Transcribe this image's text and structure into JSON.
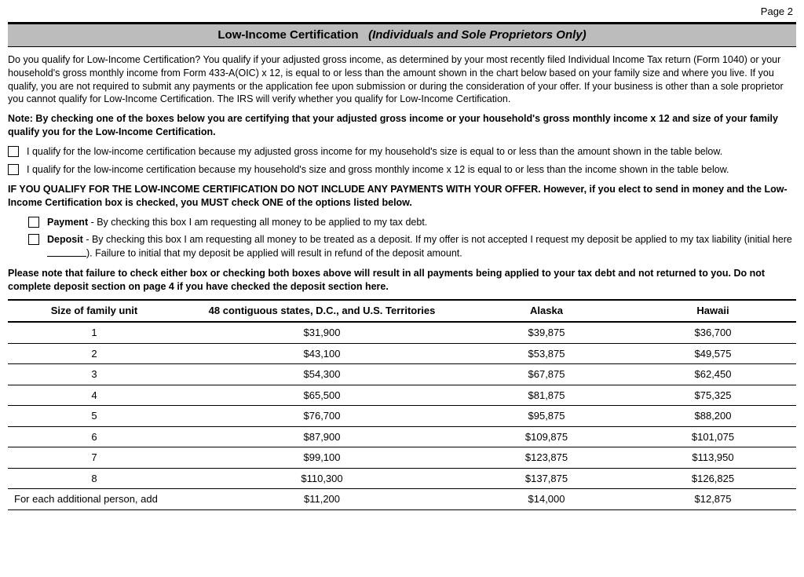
{
  "page": {
    "number_label": "Page 2"
  },
  "header": {
    "title": "Low-Income Certification",
    "subtitle": "(Individuals and Sole Proprietors Only)"
  },
  "intro_para": "Do you qualify for Low-Income Certification? You qualify if your adjusted gross income, as determined by your most recently filed Individual Income Tax return (Form 1040) or your household's gross monthly income from Form 433-A(OIC) x 12, is equal to or less than the amount shown in the chart below based on your family size and where you live. If you qualify, you are not required to submit any payments or the application fee upon submission or during the consideration of your  offer. If your business is other than a sole proprietor you cannot qualify for Low-Income Certification. The IRS will verify whether you qualify for Low-Income Certification.",
  "note_para": "Note: By checking one of the boxes below you are certifying that your adjusted gross income or your household's gross monthly income x 12 and size of your family qualify you for the Low-Income Certification.",
  "qualify_checkboxes": [
    {
      "text": "I qualify for the low-income certification because my adjusted gross income for my household's size is equal to or less than the amount shown in the table below."
    },
    {
      "text": "I qualify for the low-income certification because my household's size and gross monthly income x 12 is equal to or less than the income shown in the table below."
    }
  ],
  "if_qualify_para": "IF YOU QUALIFY FOR THE LOW-INCOME CERTIFICATION DO NOT INCLUDE ANY PAYMENTS WITH YOUR OFFER. However, if you elect to send in money and the Low-Income Certification box is checked, you MUST check ONE of the options listed below.",
  "payment_checkbox": {
    "label": "Payment",
    "text": " - By checking this box I am requesting all money to be applied to my tax debt."
  },
  "deposit_checkbox": {
    "label": "Deposit",
    "text_before": " - By checking this box I am requesting all money to be treated as a deposit. If my offer is not accepted I request my deposit be applied to my tax liability (initial here ",
    "text_after": "). Failure to initial that my deposit be applied will result in refund of the deposit amount."
  },
  "please_note_para": "Please note that failure to check either box or checking both boxes above will result in all payments being applied to your tax debt and not returned to you. Do not complete deposit section on page 4 if you have checked the deposit section here.",
  "table": {
    "columns": [
      "Size of family unit",
      "48 contiguous states, D.C., and U.S. Territories",
      "Alaska",
      "Hawaii"
    ],
    "rows": [
      [
        "1",
        "$31,900",
        "$39,875",
        "$36,700"
      ],
      [
        "2",
        "$43,100",
        "$53,875",
        "$49,575"
      ],
      [
        "3",
        "$54,300",
        "$67,875",
        "$62,450"
      ],
      [
        "4",
        "$65,500",
        "$81,875",
        "$75,325"
      ],
      [
        "5",
        "$76,700",
        "$95,875",
        "$88,200"
      ],
      [
        "6",
        "$87,900",
        "$109,875",
        "$101,075"
      ],
      [
        "7",
        "$99,100",
        "$123,875",
        "$113,950"
      ],
      [
        "8",
        "$110,300",
        "$137,875",
        "$126,825"
      ],
      [
        "For each additional person, add",
        "$11,200",
        "$14,000",
        "$12,875"
      ]
    ]
  }
}
